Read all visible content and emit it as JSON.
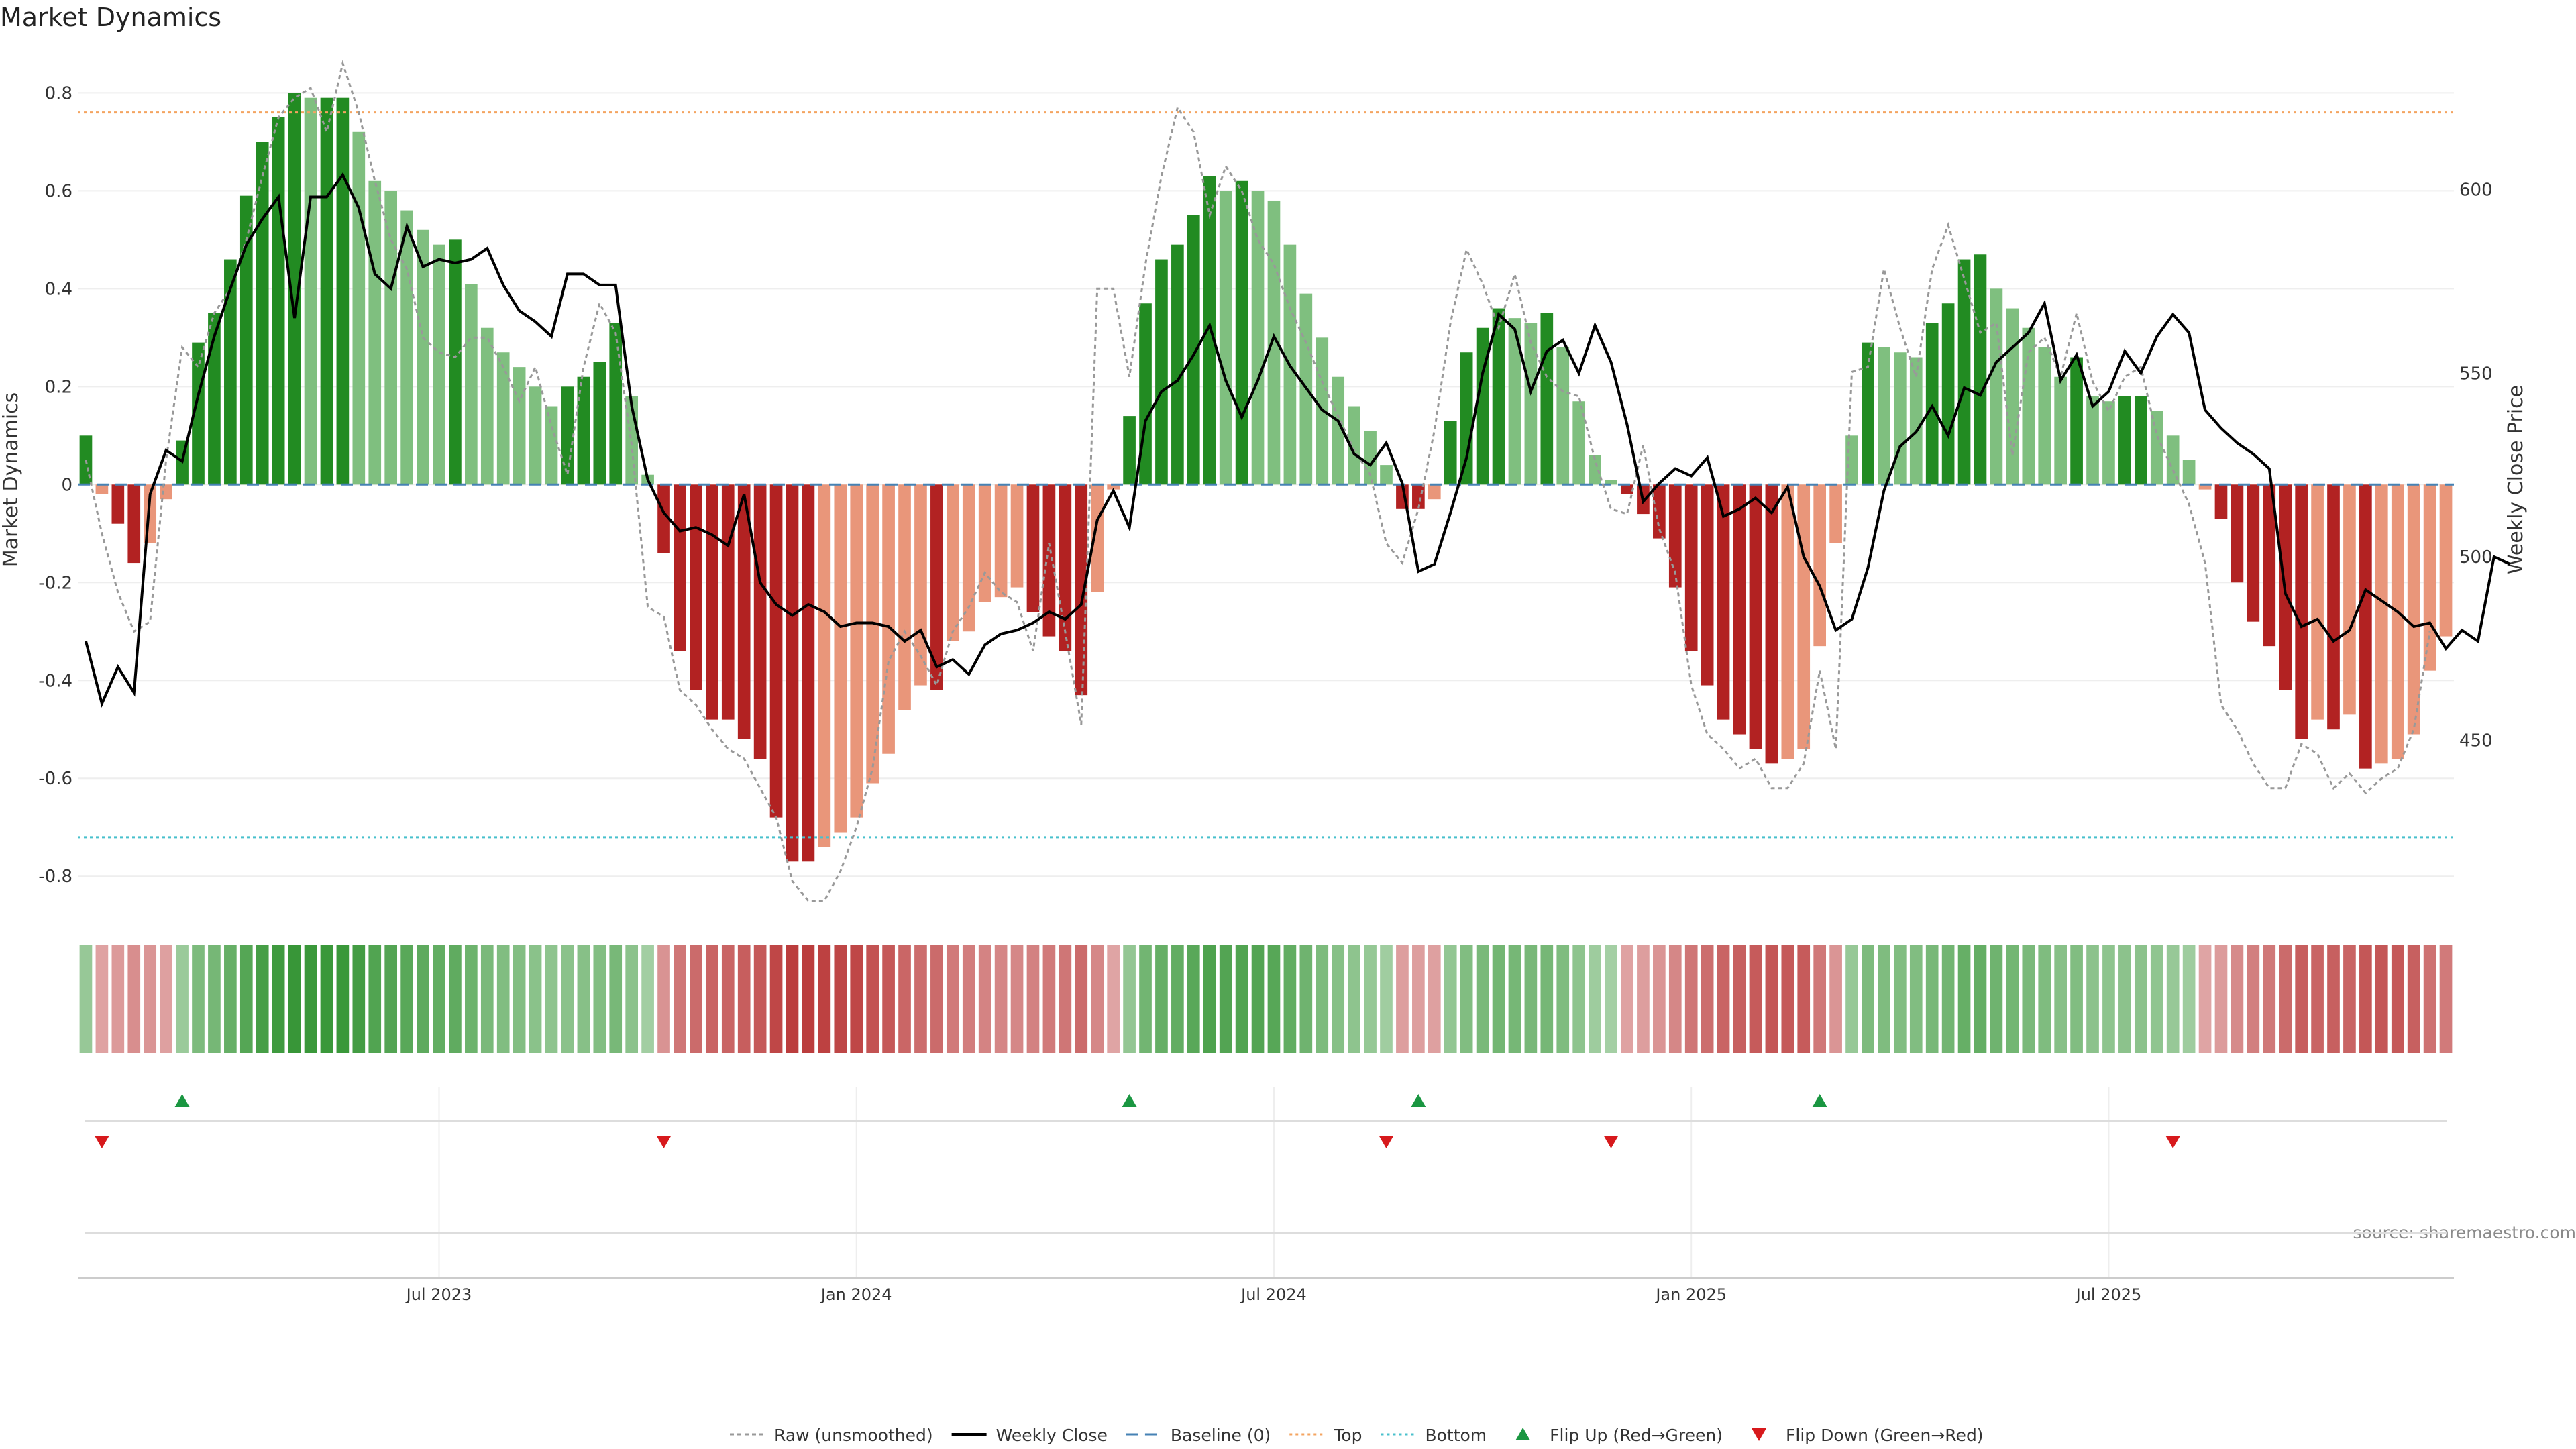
{
  "chart_data": {
    "type": "bar+line",
    "title": "Market Dynamics",
    "source": "source: sharemaestro.com",
    "left_axis": {
      "label": "Market Dynamics",
      "ylim": [
        -0.86,
        0.88
      ],
      "ticks": [
        {
          "v": 0.8,
          "t": "0.8"
        },
        {
          "v": 0.6,
          "t": "0.6"
        },
        {
          "v": 0.4,
          "t": "0.4"
        },
        {
          "v": 0.2,
          "t": "0.2"
        },
        {
          "v": 0,
          "t": "0"
        },
        {
          "v": -0.2,
          "t": "-0.2"
        },
        {
          "v": -0.4,
          "t": "-0.4"
        },
        {
          "v": -0.6,
          "t": "-0.6"
        },
        {
          "v": -0.8,
          "t": "-0.8"
        }
      ]
    },
    "right_axis": {
      "label": "Weekly Close Price",
      "ylim": [
        405,
        637
      ],
      "ticks": [
        {
          "v": 600,
          "t": "600"
        },
        {
          "v": 550,
          "t": "550"
        },
        {
          "v": 500,
          "t": "500"
        },
        {
          "v": 450,
          "t": "450"
        }
      ]
    },
    "x_ticks": [
      {
        "week": 22,
        "t": "Jul 2023"
      },
      {
        "week": 48,
        "t": "Jan 2024"
      },
      {
        "week": 74,
        "t": "Jul 2024"
      },
      {
        "week": 100,
        "t": "Jan 2025"
      },
      {
        "week": 126,
        "t": "Jul 2025"
      }
    ],
    "reference_lines": {
      "baseline": 0,
      "top": 0.76,
      "bottom": -0.72
    },
    "bars": [
      0.1,
      -0.02,
      -0.08,
      -0.16,
      -0.12,
      -0.03,
      0.09,
      0.29,
      0.35,
      0.46,
      0.59,
      0.7,
      0.75,
      0.8,
      0.79,
      0.79,
      0.79,
      0.72,
      0.62,
      0.6,
      0.56,
      0.52,
      0.49,
      0.5,
      0.41,
      0.32,
      0.27,
      0.24,
      0.2,
      0.16,
      0.2,
      0.22,
      0.25,
      0.33,
      0.18,
      0.02,
      -0.14,
      -0.34,
      -0.42,
      -0.48,
      -0.48,
      -0.52,
      -0.56,
      -0.68,
      -0.77,
      -0.77,
      -0.74,
      -0.71,
      -0.68,
      -0.61,
      -0.55,
      -0.46,
      -0.41,
      -0.42,
      -0.32,
      -0.3,
      -0.24,
      -0.23,
      -0.21,
      -0.26,
      -0.31,
      -0.34,
      -0.43,
      -0.22,
      -0.01,
      0.14,
      0.37,
      0.46,
      0.49,
      0.55,
      0.63,
      0.6,
      0.62,
      0.6,
      0.58,
      0.49,
      0.39,
      0.3,
      0.22,
      0.16,
      0.11,
      0.04,
      -0.05,
      -0.05,
      -0.03,
      0.13,
      0.27,
      0.32,
      0.36,
      0.34,
      0.33,
      0.35,
      0.28,
      0.17,
      0.06,
      0.01,
      -0.02,
      -0.06,
      -0.11,
      -0.21,
      -0.34,
      -0.41,
      -0.48,
      -0.51,
      -0.54,
      -0.57,
      -0.56,
      -0.54,
      -0.33,
      -0.12,
      0.1,
      0.29,
      0.28,
      0.27,
      0.26,
      0.33,
      0.37,
      0.46,
      0.47,
      0.4,
      0.36,
      0.32,
      0.28,
      0.22,
      0.26,
      0.18,
      0.17,
      0.18,
      0.18,
      0.15,
      0.1,
      0.05,
      -0.01,
      -0.07,
      -0.2,
      -0.28,
      -0.33,
      -0.42,
      -0.52,
      -0.48,
      -0.5,
      -0.47,
      -0.58,
      -0.57,
      -0.56,
      -0.51,
      -0.38,
      -0.31
    ],
    "raw_unsmoothed": [
      0.05,
      -0.1,
      -0.22,
      -0.3,
      -0.28,
      0.05,
      0.28,
      0.24,
      0.35,
      0.4,
      0.5,
      0.63,
      0.75,
      0.79,
      0.81,
      0.72,
      0.86,
      0.76,
      0.62,
      0.5,
      0.44,
      0.3,
      0.27,
      0.26,
      0.3,
      0.3,
      0.24,
      0.17,
      0.24,
      0.12,
      0.02,
      0.24,
      0.37,
      0.31,
      0.08,
      -0.25,
      -0.27,
      -0.42,
      -0.45,
      -0.5,
      -0.54,
      -0.56,
      -0.62,
      -0.68,
      -0.81,
      -0.85,
      -0.85,
      -0.79,
      -0.7,
      -0.58,
      -0.36,
      -0.3,
      -0.35,
      -0.41,
      -0.3,
      -0.25,
      -0.18,
      -0.22,
      -0.24,
      -0.34,
      -0.12,
      -0.3,
      -0.49,
      0.4,
      0.4,
      0.22,
      0.45,
      0.63,
      0.77,
      0.72,
      0.55,
      0.65,
      0.6,
      0.5,
      0.45,
      0.36,
      0.29,
      0.21,
      0.14,
      0.07,
      0.02,
      -0.12,
      -0.16,
      -0.05,
      0.11,
      0.33,
      0.48,
      0.41,
      0.32,
      0.43,
      0.29,
      0.22,
      0.19,
      0.18,
      0.05,
      -0.05,
      -0.06,
      0.08,
      -0.09,
      -0.18,
      -0.41,
      -0.51,
      -0.54,
      -0.58,
      -0.56,
      -0.62,
      -0.62,
      -0.57,
      -0.38,
      -0.54,
      0.23,
      0.24,
      0.44,
      0.32,
      0.22,
      0.44,
      0.53,
      0.42,
      0.31,
      0.33,
      0.06,
      0.27,
      0.3,
      0.22,
      0.35,
      0.21,
      0.15,
      0.22,
      0.24,
      0.1,
      0.03,
      -0.04,
      -0.16,
      -0.45,
      -0.5,
      -0.57,
      -0.62,
      -0.62,
      -0.53,
      -0.55,
      -0.62,
      -0.59,
      -0.63,
      -0.6,
      -0.58,
      -0.5,
      -0.3
    ],
    "weekly_close": [
      477,
      460,
      470,
      463,
      517,
      529,
      526,
      544,
      560,
      573,
      585,
      592,
      598,
      565,
      598,
      598,
      604,
      595,
      577,
      573,
      590,
      579,
      581,
      580,
      581,
      584,
      574,
      567,
      564,
      560,
      577,
      577,
      574,
      574,
      541,
      521,
      512,
      507,
      508,
      506,
      503,
      517,
      493,
      487,
      484,
      487,
      485,
      481,
      482,
      482,
      481,
      477,
      480,
      470,
      472,
      468,
      476,
      479,
      480,
      482,
      485,
      483,
      487,
      510,
      518,
      508,
      537,
      545,
      548,
      555,
      563,
      548,
      538,
      548,
      560,
      552,
      546,
      540,
      537,
      528,
      525,
      531,
      520,
      496,
      498,
      512,
      527,
      550,
      566,
      562,
      545,
      556,
      559,
      550,
      563,
      553,
      536,
      515,
      520,
      524,
      522,
      527,
      511,
      513,
      516,
      512,
      519,
      500,
      492,
      480,
      483,
      497,
      518,
      530,
      534,
      541,
      533,
      546,
      544,
      553,
      557,
      561,
      569,
      548,
      555,
      541,
      545,
      556,
      550,
      560,
      566,
      561,
      540,
      535,
      531,
      528,
      524,
      490,
      481,
      483,
      477,
      480,
      491,
      488,
      485,
      481,
      482,
      475,
      480,
      477,
      500,
      498
    ]
  },
  "strip": {
    "label": "regime-strip"
  },
  "flips": {
    "up": [
      6,
      65,
      83,
      108
    ],
    "down": [
      1,
      36,
      81,
      95,
      130
    ]
  },
  "legend": [
    {
      "key": "raw",
      "label": "Raw (unsmoothed)"
    },
    {
      "key": "close",
      "label": "Weekly Close"
    },
    {
      "key": "baseline",
      "label": "Baseline (0)"
    },
    {
      "key": "top",
      "label": "Top"
    },
    {
      "key": "bottom",
      "label": "Bottom"
    },
    {
      "key": "flipup",
      "label": "Flip Up (Red→Green)"
    },
    {
      "key": "flipdown",
      "label": "Flip Down (Green→Red)"
    }
  ],
  "colors": {
    "green_dark": "#228b22",
    "green_light": "#7fbf7f",
    "red_dark": "#b22222",
    "red_light": "#e9967a",
    "close": "#000000",
    "raw": "#999999",
    "baseline": "#4682b4",
    "top": "#f4a460",
    "bottom": "#48c0cc",
    "flip_up": "#1a9641",
    "flip_down": "#d7191c",
    "grid": "#eeeeee"
  }
}
